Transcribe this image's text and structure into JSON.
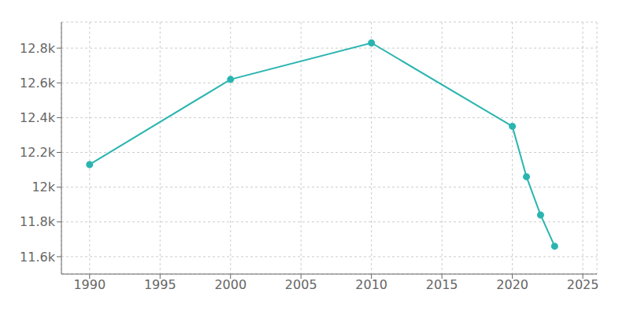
{
  "chart_data": {
    "type": "line",
    "x": [
      1990,
      2000,
      2010,
      2020,
      2021,
      2022,
      2023
    ],
    "values": [
      12130,
      12620,
      12830,
      12350,
      12060,
      11840,
      11660
    ],
    "color": "#2ab5b0",
    "marker": "circle",
    "line_style": "solid",
    "xlim": [
      1988,
      2026
    ],
    "xticks": [
      1990,
      1995,
      2000,
      2005,
      2010,
      2015,
      2020,
      2025
    ],
    "ylim": [
      11500,
      12950
    ],
    "yticks": [
      {
        "value": 11600,
        "label": "11.6k"
      },
      {
        "value": 11800,
        "label": "11.8k"
      },
      {
        "value": 12000,
        "label": "12k"
      },
      {
        "value": 12200,
        "label": "12.2k"
      },
      {
        "value": 12400,
        "label": "12.4k"
      },
      {
        "value": 12600,
        "label": "12.6k"
      },
      {
        "value": 12800,
        "label": "12.8k"
      }
    ],
    "grid": true
  }
}
